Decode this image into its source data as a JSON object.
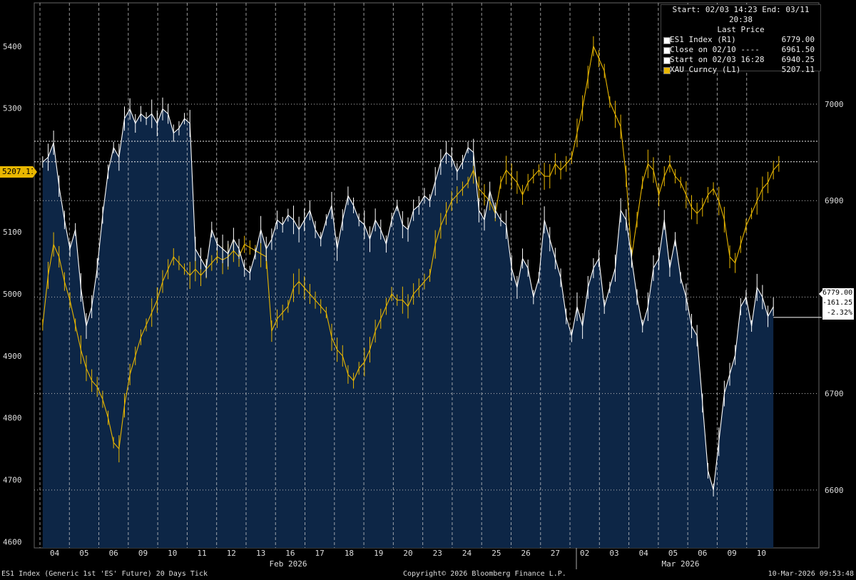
{
  "chart_data": {
    "type": "line",
    "title": "ES1 Index (Generic 1st 'ES' Future) 20 Days Tick",
    "subtitle": "Last Price",
    "date_range": {
      "start": "Start: 02/03 14:23",
      "end": "End: 03/11 20:38"
    },
    "x_ticks": [
      "04",
      "05",
      "06",
      "09",
      "10",
      "11",
      "12",
      "13",
      "16",
      "17",
      "18",
      "19",
      "20",
      "23",
      "24",
      "25",
      "26",
      "27",
      "02",
      "03",
      "04",
      "05",
      "06",
      "09",
      "10"
    ],
    "month_labels": [
      "Feb 2026",
      "Mar 2026"
    ],
    "left_axis": {
      "series": "XAU Curncy",
      "ticks": [
        4600,
        4700,
        4800,
        4900,
        5000,
        5100,
        5200,
        5300,
        5400
      ],
      "ylim": [
        4590,
        5470
      ]
    },
    "right_axis": {
      "series": "ES1 Index",
      "ticks": [
        6600,
        6700,
        6800,
        6900,
        7000
      ],
      "ylim": [
        6540,
        7105
      ]
    },
    "reference_lines": [
      {
        "label": "Close on 02/10",
        "value": 6961.5
      },
      {
        "label": "Start on 02/03 16:28",
        "value": 6940.25
      }
    ],
    "series": [
      {
        "name": "ES1 Index (R1)",
        "axis": "right",
        "color": "#ffffff",
        "last": 6779.0,
        "change": "-161.25",
        "change_pct": "-2.32%",
        "values": [
          6940,
          6945,
          6960,
          6915,
          6880,
          6850,
          6870,
          6810,
          6770,
          6790,
          6830,
          6885,
          6930,
          6955,
          6945,
          6985,
          6995,
          6980,
          6990,
          6985,
          6990,
          6980,
          6995,
          6990,
          6970,
          6975,
          6985,
          6980,
          6850,
          6840,
          6830,
          6870,
          6855,
          6850,
          6845,
          6860,
          6850,
          6830,
          6825,
          6845,
          6870,
          6850,
          6860,
          6880,
          6875,
          6885,
          6880,
          6870,
          6880,
          6890,
          6870,
          6860,
          6880,
          6895,
          6850,
          6880,
          6905,
          6895,
          6880,
          6875,
          6860,
          6880,
          6870,
          6855,
          6880,
          6895,
          6875,
          6870,
          6890,
          6895,
          6905,
          6900,
          6920,
          6940,
          6950,
          6945,
          6930,
          6940,
          6955,
          6950,
          6890,
          6880,
          6910,
          6890,
          6880,
          6875,
          6830,
          6810,
          6840,
          6830,
          6800,
          6820,
          6880,
          6860,
          6840,
          6820,
          6780,
          6760,
          6790,
          6770,
          6810,
          6830,
          6840,
          6790,
          6810,
          6830,
          6890,
          6880,
          6840,
          6800,
          6770,
          6790,
          6830,
          6840,
          6880,
          6830,
          6860,
          6820,
          6800,
          6770,
          6760,
          6690,
          6620,
          6600,
          6650,
          6700,
          6720,
          6740,
          6790,
          6800,
          6770,
          6810,
          6800,
          6780,
          6790
        ]
      },
      {
        "name": "XAU Curncy (L1)",
        "axis": "left",
        "color": "#e9b700",
        "last": 5207.11,
        "values": [
          4950,
          5030,
          5080,
          5060,
          5020,
          4990,
          4950,
          4910,
          4880,
          4860,
          4850,
          4830,
          4800,
          4760,
          4750,
          4820,
          4870,
          4900,
          4930,
          4950,
          4970,
          4990,
          5020,
          5040,
          5060,
          5050,
          5040,
          5030,
          5040,
          5030,
          5040,
          5050,
          5060,
          5055,
          5060,
          5070,
          5060,
          5080,
          5075,
          5070,
          5065,
          5060,
          4940,
          4960,
          4970,
          4980,
          5010,
          5020,
          5010,
          5000,
          4990,
          4980,
          4970,
          4930,
          4910,
          4900,
          4870,
          4860,
          4880,
          4890,
          4910,
          4940,
          4960,
          4980,
          5000,
          4990,
          4990,
          4980,
          5000,
          5010,
          5020,
          5030,
          5080,
          5110,
          5130,
          5150,
          5160,
          5170,
          5180,
          5200,
          5170,
          5160,
          5150,
          5130,
          5180,
          5200,
          5190,
          5180,
          5160,
          5180,
          5190,
          5200,
          5190,
          5190,
          5210,
          5200,
          5210,
          5220,
          5260,
          5300,
          5350,
          5400,
          5380,
          5360,
          5310,
          5290,
          5270,
          5190,
          5060,
          5120,
          5180,
          5210,
          5200,
          5160,
          5190,
          5210,
          5190,
          5180,
          5160,
          5140,
          5130,
          5140,
          5160,
          5170,
          5150,
          5120,
          5060,
          5050,
          5080,
          5110,
          5130,
          5150,
          5170,
          5180,
          5200,
          5210
        ]
      }
    ],
    "annotations": {
      "left_tag": "5207.11",
      "right_tag": [
        "6779.00",
        "-161.25",
        "-2.32%"
      ]
    }
  },
  "legend": {
    "header": "Start: 02/03 14:23 End: 03/11 20:38",
    "subheader": "Last Price",
    "items": [
      {
        "label": "ES1 Index  (R1)",
        "value": "6779.00",
        "swatch": "#ffffff"
      },
      {
        "label": "Close on 02/10 ----",
        "value": "6961.50",
        "swatch": "#ffffff"
      },
      {
        "label": "Start on 02/03 16:28",
        "value": "6940.25",
        "swatch": "#ffffff"
      },
      {
        "label": "XAU Curncy  (L1)",
        "value": "5207.11",
        "swatch": "#e9b700"
      }
    ]
  },
  "footer": {
    "left": "ES1 Index (Generic 1st 'ES' Future) 20 Days Tick",
    "center": "Copyright© 2026 Bloomberg Finance L.P.",
    "right": "10-Mar-2026 09:53:48"
  }
}
